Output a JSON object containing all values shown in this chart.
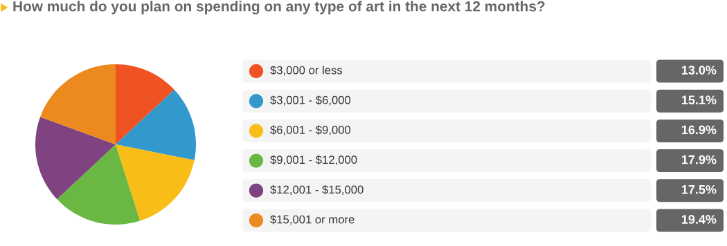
{
  "chart_data": {
    "type": "pie",
    "title": "How much do you plan on spending on any type of art in the next 12 months?",
    "categories": [
      "$3,000 or less",
      "$3,001 - $6,000",
      "$6,001 - $9,000",
      "$9,001 - $12,000",
      "$12,001 - $15,000",
      "$15,001 or more"
    ],
    "values": [
      13.0,
      15.1,
      16.9,
      17.9,
      17.5,
      19.4
    ],
    "colors": [
      "#f05323",
      "#3399cc",
      "#f9bd18",
      "#6ab843",
      "#7e4380",
      "#ec8a20"
    ],
    "value_labels": [
      "13.0%",
      "15.1%",
      "16.9%",
      "17.9%",
      "17.5%",
      "19.4%"
    ],
    "legend": "right"
  }
}
